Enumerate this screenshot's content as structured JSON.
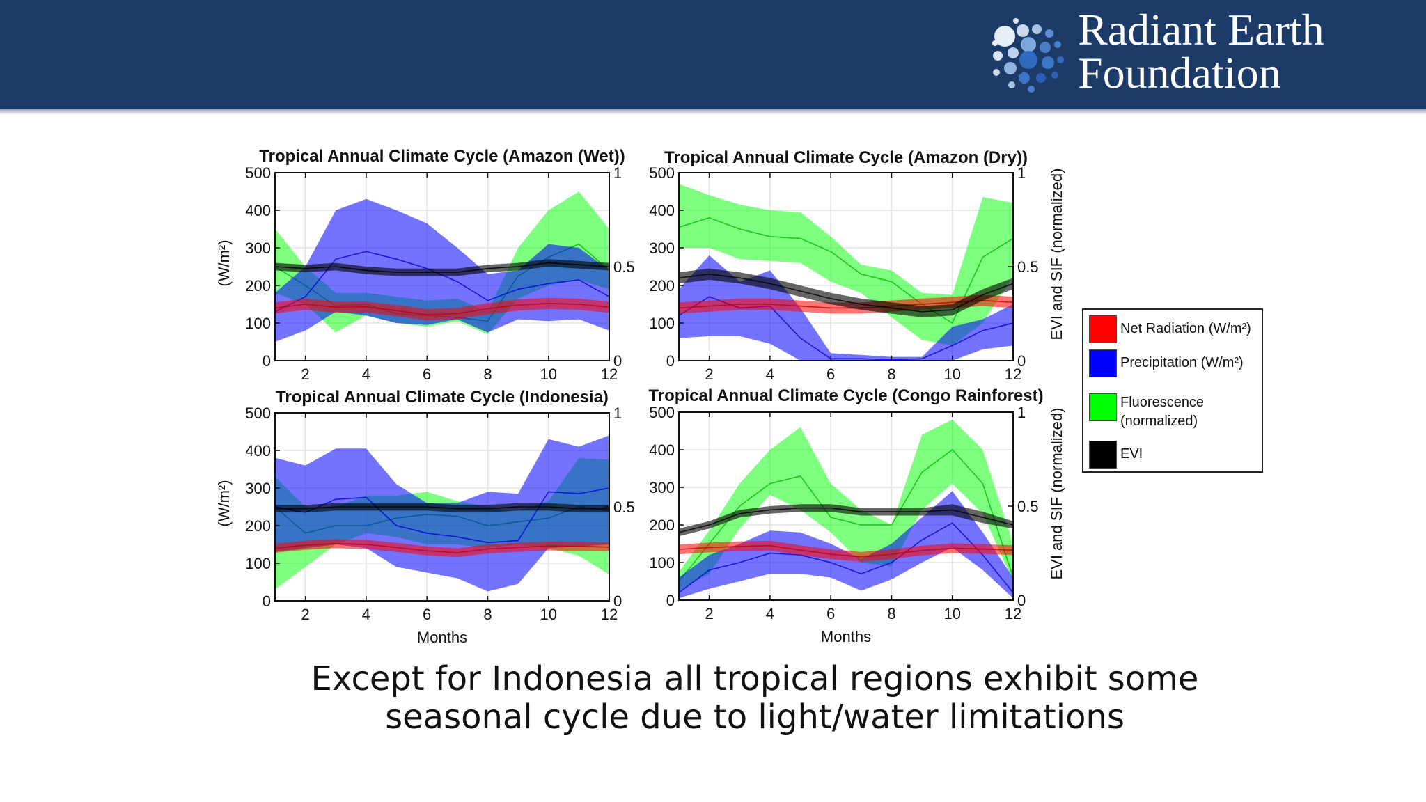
{
  "header": {
    "brand_line1": "Radiant Earth",
    "brand_line2": "Foundation",
    "background": "#1c3b68"
  },
  "caption": {
    "line1": "Except for Indonesia all tropical regions exhibit some",
    "line2": "seasonal cycle due to light/water limitations"
  },
  "legend": {
    "items": [
      {
        "label": "Net Radiation (W/m²)",
        "color": "#ff0000"
      },
      {
        "label": "Precipitation (W/m²)",
        "color": "#0000ff"
      },
      {
        "label": "Fluorescence (normalized)",
        "color": "#00ff00"
      },
      {
        "label": "EVI",
        "color": "#000000"
      }
    ]
  },
  "chart_data": [
    {
      "type": "area",
      "title": "Tropical Annual Climate Cycle (Amazon (Wet))",
      "xlabel": "",
      "ylabel": "(W/m²)",
      "y2label": "",
      "xlim": [
        1,
        12
      ],
      "ylim": [
        0,
        500
      ],
      "y2lim": [
        0,
        1
      ],
      "xticks": [
        2,
        4,
        6,
        8,
        10,
        12
      ],
      "yticks": [
        0,
        100,
        200,
        300,
        400,
        500
      ],
      "y2ticks": [
        0,
        0.5,
        1
      ],
      "grid": true,
      "x": [
        1,
        2,
        3,
        4,
        5,
        6,
        7,
        8,
        9,
        10,
        11,
        12
      ],
      "series": [
        {
          "name": "Fluorescence (normalized)",
          "axis": "right",
          "color": "#00ff00",
          "mean": [
            0.5,
            0.4,
            0.29,
            0.3,
            0.25,
            0.24,
            0.23,
            0.21,
            0.45,
            0.55,
            0.62,
            0.48
          ],
          "upper": [
            0.7,
            0.5,
            0.36,
            0.36,
            0.34,
            0.32,
            0.33,
            0.26,
            0.6,
            0.8,
            0.9,
            0.7
          ],
          "lower": [
            0.36,
            0.3,
            0.15,
            0.24,
            0.2,
            0.18,
            0.21,
            0.14,
            0.33,
            0.4,
            0.43,
            0.38
          ]
        },
        {
          "name": "Precipitation (W/m²)",
          "axis": "left",
          "color": "#0000ff",
          "mean": [
            130,
            170,
            270,
            290,
            270,
            245,
            210,
            160,
            190,
            205,
            215,
            170
          ],
          "upper": [
            180,
            250,
            400,
            430,
            400,
            365,
            300,
            230,
            240,
            310,
            300,
            240
          ],
          "lower": [
            50,
            80,
            130,
            120,
            100,
            95,
            110,
            75,
            110,
            105,
            110,
            80
          ]
        },
        {
          "name": "Net Radiation (W/m²)",
          "axis": "left",
          "color": "#ff0000",
          "mean": [
            140,
            150,
            142,
            143,
            133,
            122,
            125,
            138,
            148,
            152,
            150,
            142
          ],
          "upper": [
            155,
            165,
            157,
            157,
            148,
            137,
            140,
            153,
            163,
            167,
            165,
            157
          ],
          "lower": [
            125,
            135,
            127,
            128,
            118,
            107,
            110,
            123,
            133,
            137,
            135,
            127
          ]
        },
        {
          "name": "EVI",
          "axis": "right",
          "color": "#000000",
          "mean": [
            0.5,
            0.49,
            0.5,
            0.48,
            0.47,
            0.47,
            0.47,
            0.49,
            0.5,
            0.52,
            0.51,
            0.5
          ],
          "upper": [
            0.52,
            0.51,
            0.52,
            0.5,
            0.49,
            0.49,
            0.49,
            0.51,
            0.52,
            0.54,
            0.53,
            0.52
          ],
          "lower": [
            0.48,
            0.47,
            0.48,
            0.46,
            0.45,
            0.45,
            0.45,
            0.47,
            0.48,
            0.5,
            0.49,
            0.48
          ]
        }
      ]
    },
    {
      "type": "area",
      "title": "Tropical Annual Climate Cycle (Amazon (Dry))",
      "xlabel": "",
      "ylabel": "",
      "y2label": "EVI and SIF (normalized)",
      "xlim": [
        1,
        12
      ],
      "ylim": [
        0,
        500
      ],
      "y2lim": [
        0,
        1
      ],
      "xticks": [
        2,
        4,
        6,
        8,
        10,
        12
      ],
      "yticks": [
        0,
        100,
        200,
        300,
        400,
        500
      ],
      "y2ticks": [
        0,
        0.5,
        1
      ],
      "grid": true,
      "x": [
        1,
        2,
        3,
        4,
        5,
        6,
        7,
        8,
        9,
        10,
        11,
        12
      ],
      "series": [
        {
          "name": "Fluorescence (normalized)",
          "axis": "right",
          "color": "#00ff00",
          "mean": [
            0.71,
            0.76,
            0.7,
            0.66,
            0.65,
            0.58,
            0.46,
            0.42,
            0.3,
            0.2,
            0.55,
            0.65
          ],
          "upper": [
            0.94,
            0.88,
            0.83,
            0.8,
            0.79,
            0.66,
            0.51,
            0.48,
            0.36,
            0.35,
            0.87,
            0.84
          ],
          "lower": [
            0.6,
            0.6,
            0.54,
            0.53,
            0.52,
            0.42,
            0.36,
            0.23,
            0.11,
            0.08,
            0.2,
            0.45
          ]
        },
        {
          "name": "Precipitation (W/m²)",
          "axis": "left",
          "color": "#0000ff",
          "mean": [
            120,
            170,
            140,
            145,
            60,
            5,
            5,
            2,
            5,
            40,
            80,
            100
          ],
          "upper": [
            190,
            280,
            210,
            240,
            140,
            20,
            15,
            10,
            10,
            90,
            110,
            150
          ],
          "lower": [
            60,
            65,
            65,
            45,
            0,
            0,
            0,
            0,
            0,
            0,
            30,
            40
          ]
        },
        {
          "name": "Net Radiation (W/m²)",
          "axis": "left",
          "color": "#ff0000",
          "mean": [
            140,
            145,
            150,
            150,
            145,
            140,
            140,
            145,
            150,
            155,
            160,
            155
          ],
          "upper": [
            155,
            160,
            165,
            165,
            160,
            155,
            155,
            160,
            165,
            170,
            175,
            170
          ],
          "lower": [
            125,
            130,
            135,
            135,
            130,
            125,
            125,
            130,
            135,
            140,
            145,
            140
          ]
        },
        {
          "name": "EVI",
          "axis": "right",
          "color": "#000000",
          "mean": [
            0.44,
            0.46,
            0.44,
            0.41,
            0.37,
            0.33,
            0.3,
            0.28,
            0.26,
            0.27,
            0.35,
            0.41
          ],
          "upper": [
            0.47,
            0.49,
            0.47,
            0.44,
            0.4,
            0.36,
            0.33,
            0.31,
            0.29,
            0.3,
            0.38,
            0.44
          ],
          "lower": [
            0.41,
            0.43,
            0.41,
            0.38,
            0.34,
            0.3,
            0.27,
            0.25,
            0.23,
            0.24,
            0.32,
            0.38
          ]
        }
      ]
    },
    {
      "type": "area",
      "title": "Tropical Annual Climate Cycle (Indonesia)",
      "xlabel": "Months",
      "ylabel": "(W/m²)",
      "y2label": "",
      "xlim": [
        1,
        12
      ],
      "ylim": [
        0,
        500
      ],
      "y2lim": [
        0,
        1
      ],
      "xticks": [
        2,
        4,
        6,
        8,
        10,
        12
      ],
      "yticks": [
        0,
        100,
        200,
        300,
        400,
        500
      ],
      "y2ticks": [
        0,
        0.5,
        1
      ],
      "grid": true,
      "x": [
        1,
        2,
        3,
        4,
        5,
        6,
        7,
        8,
        9,
        10,
        11,
        12
      ],
      "series": [
        {
          "name": "Fluorescence (normalized)",
          "axis": "right",
          "color": "#00ff00",
          "mean": [
            0.5,
            0.36,
            0.4,
            0.4,
            0.44,
            0.46,
            0.45,
            0.4,
            0.42,
            0.44,
            0.5,
            0.48
          ],
          "upper": [
            0.66,
            0.5,
            0.5,
            0.56,
            0.56,
            0.58,
            0.53,
            0.5,
            0.48,
            0.53,
            0.76,
            0.75
          ],
          "lower": [
            0.06,
            0.18,
            0.3,
            0.36,
            0.34,
            0.3,
            0.3,
            0.28,
            0.3,
            0.28,
            0.24,
            0.14
          ]
        },
        {
          "name": "Precipitation (W/m²)",
          "axis": "left",
          "color": "#0000ff",
          "mean": [
            250,
            235,
            270,
            275,
            200,
            180,
            170,
            155,
            160,
            290,
            285,
            300
          ],
          "upper": [
            380,
            360,
            405,
            405,
            310,
            260,
            260,
            290,
            285,
            430,
            410,
            440
          ],
          "lower": [
            130,
            140,
            150,
            140,
            90,
            75,
            60,
            25,
            45,
            140,
            145,
            150
          ]
        },
        {
          "name": "Net Radiation (W/m²)",
          "axis": "left",
          "color": "#ff0000",
          "mean": [
            140,
            148,
            152,
            150,
            142,
            133,
            128,
            138,
            142,
            146,
            145,
            143
          ],
          "upper": [
            152,
            160,
            164,
            162,
            154,
            145,
            140,
            150,
            154,
            158,
            157,
            155
          ],
          "lower": [
            128,
            136,
            140,
            138,
            130,
            121,
            116,
            126,
            130,
            134,
            133,
            131
          ]
        },
        {
          "name": "EVI",
          "axis": "right",
          "color": "#000000",
          "mean": [
            0.49,
            0.49,
            0.5,
            0.5,
            0.5,
            0.5,
            0.49,
            0.49,
            0.5,
            0.5,
            0.49,
            0.49
          ],
          "upper": [
            0.51,
            0.51,
            0.52,
            0.52,
            0.52,
            0.52,
            0.51,
            0.51,
            0.52,
            0.52,
            0.51,
            0.51
          ],
          "lower": [
            0.47,
            0.47,
            0.48,
            0.48,
            0.48,
            0.48,
            0.47,
            0.47,
            0.48,
            0.48,
            0.47,
            0.47
          ]
        }
      ]
    },
    {
      "type": "area",
      "title": "Tropical Annual Climate Cycle (Congo Rainforest)",
      "xlabel": "Months",
      "ylabel": "",
      "y2label": "EVI and SIF (normalized)",
      "xlim": [
        1,
        12
      ],
      "ylim": [
        0,
        500
      ],
      "y2lim": [
        0,
        1
      ],
      "xticks": [
        2,
        4,
        6,
        8,
        10,
        12
      ],
      "yticks": [
        0,
        100,
        200,
        300,
        400,
        500
      ],
      "y2ticks": [
        0,
        0.5,
        1
      ],
      "grid": true,
      "x": [
        1,
        2,
        3,
        4,
        5,
        6,
        7,
        8,
        9,
        10,
        11,
        12
      ],
      "series": [
        {
          "name": "Fluorescence (normalized)",
          "axis": "right",
          "color": "#00ff00",
          "mean": [
            0.1,
            0.3,
            0.5,
            0.62,
            0.66,
            0.44,
            0.4,
            0.4,
            0.68,
            0.8,
            0.62,
            0.12
          ],
          "upper": [
            0.15,
            0.37,
            0.62,
            0.8,
            0.92,
            0.62,
            0.48,
            0.4,
            0.88,
            0.96,
            0.8,
            0.3
          ],
          "lower": [
            0.05,
            0.14,
            0.38,
            0.56,
            0.48,
            0.36,
            0.2,
            0.18,
            0.48,
            0.62,
            0.46,
            0.1
          ]
        },
        {
          "name": "Precipitation (W/m²)",
          "axis": "left",
          "color": "#0000ff",
          "mean": [
            20,
            80,
            100,
            125,
            120,
            100,
            70,
            100,
            160,
            205,
            120,
            20
          ],
          "upper": [
            60,
            120,
            150,
            185,
            180,
            150,
            110,
            150,
            220,
            290,
            180,
            60
          ],
          "lower": [
            5,
            30,
            50,
            70,
            70,
            60,
            25,
            55,
            100,
            140,
            80,
            5
          ]
        },
        {
          "name": "Net Radiation (W/m²)",
          "axis": "left",
          "color": "#ff0000",
          "mean": [
            135,
            140,
            143,
            145,
            133,
            122,
            115,
            122,
            132,
            138,
            136,
            133
          ],
          "upper": [
            148,
            153,
            156,
            158,
            146,
            135,
            128,
            135,
            145,
            151,
            149,
            146
          ],
          "lower": [
            122,
            127,
            130,
            132,
            120,
            109,
            102,
            109,
            119,
            125,
            123,
            120
          ]
        },
        {
          "name": "EVI",
          "axis": "right",
          "color": "#000000",
          "mean": [
            0.36,
            0.4,
            0.46,
            0.48,
            0.49,
            0.49,
            0.47,
            0.47,
            0.47,
            0.48,
            0.44,
            0.4
          ],
          "upper": [
            0.38,
            0.42,
            0.48,
            0.5,
            0.51,
            0.51,
            0.49,
            0.49,
            0.49,
            0.51,
            0.47,
            0.42
          ],
          "lower": [
            0.34,
            0.38,
            0.44,
            0.46,
            0.47,
            0.47,
            0.45,
            0.45,
            0.45,
            0.45,
            0.41,
            0.38
          ]
        }
      ]
    }
  ]
}
